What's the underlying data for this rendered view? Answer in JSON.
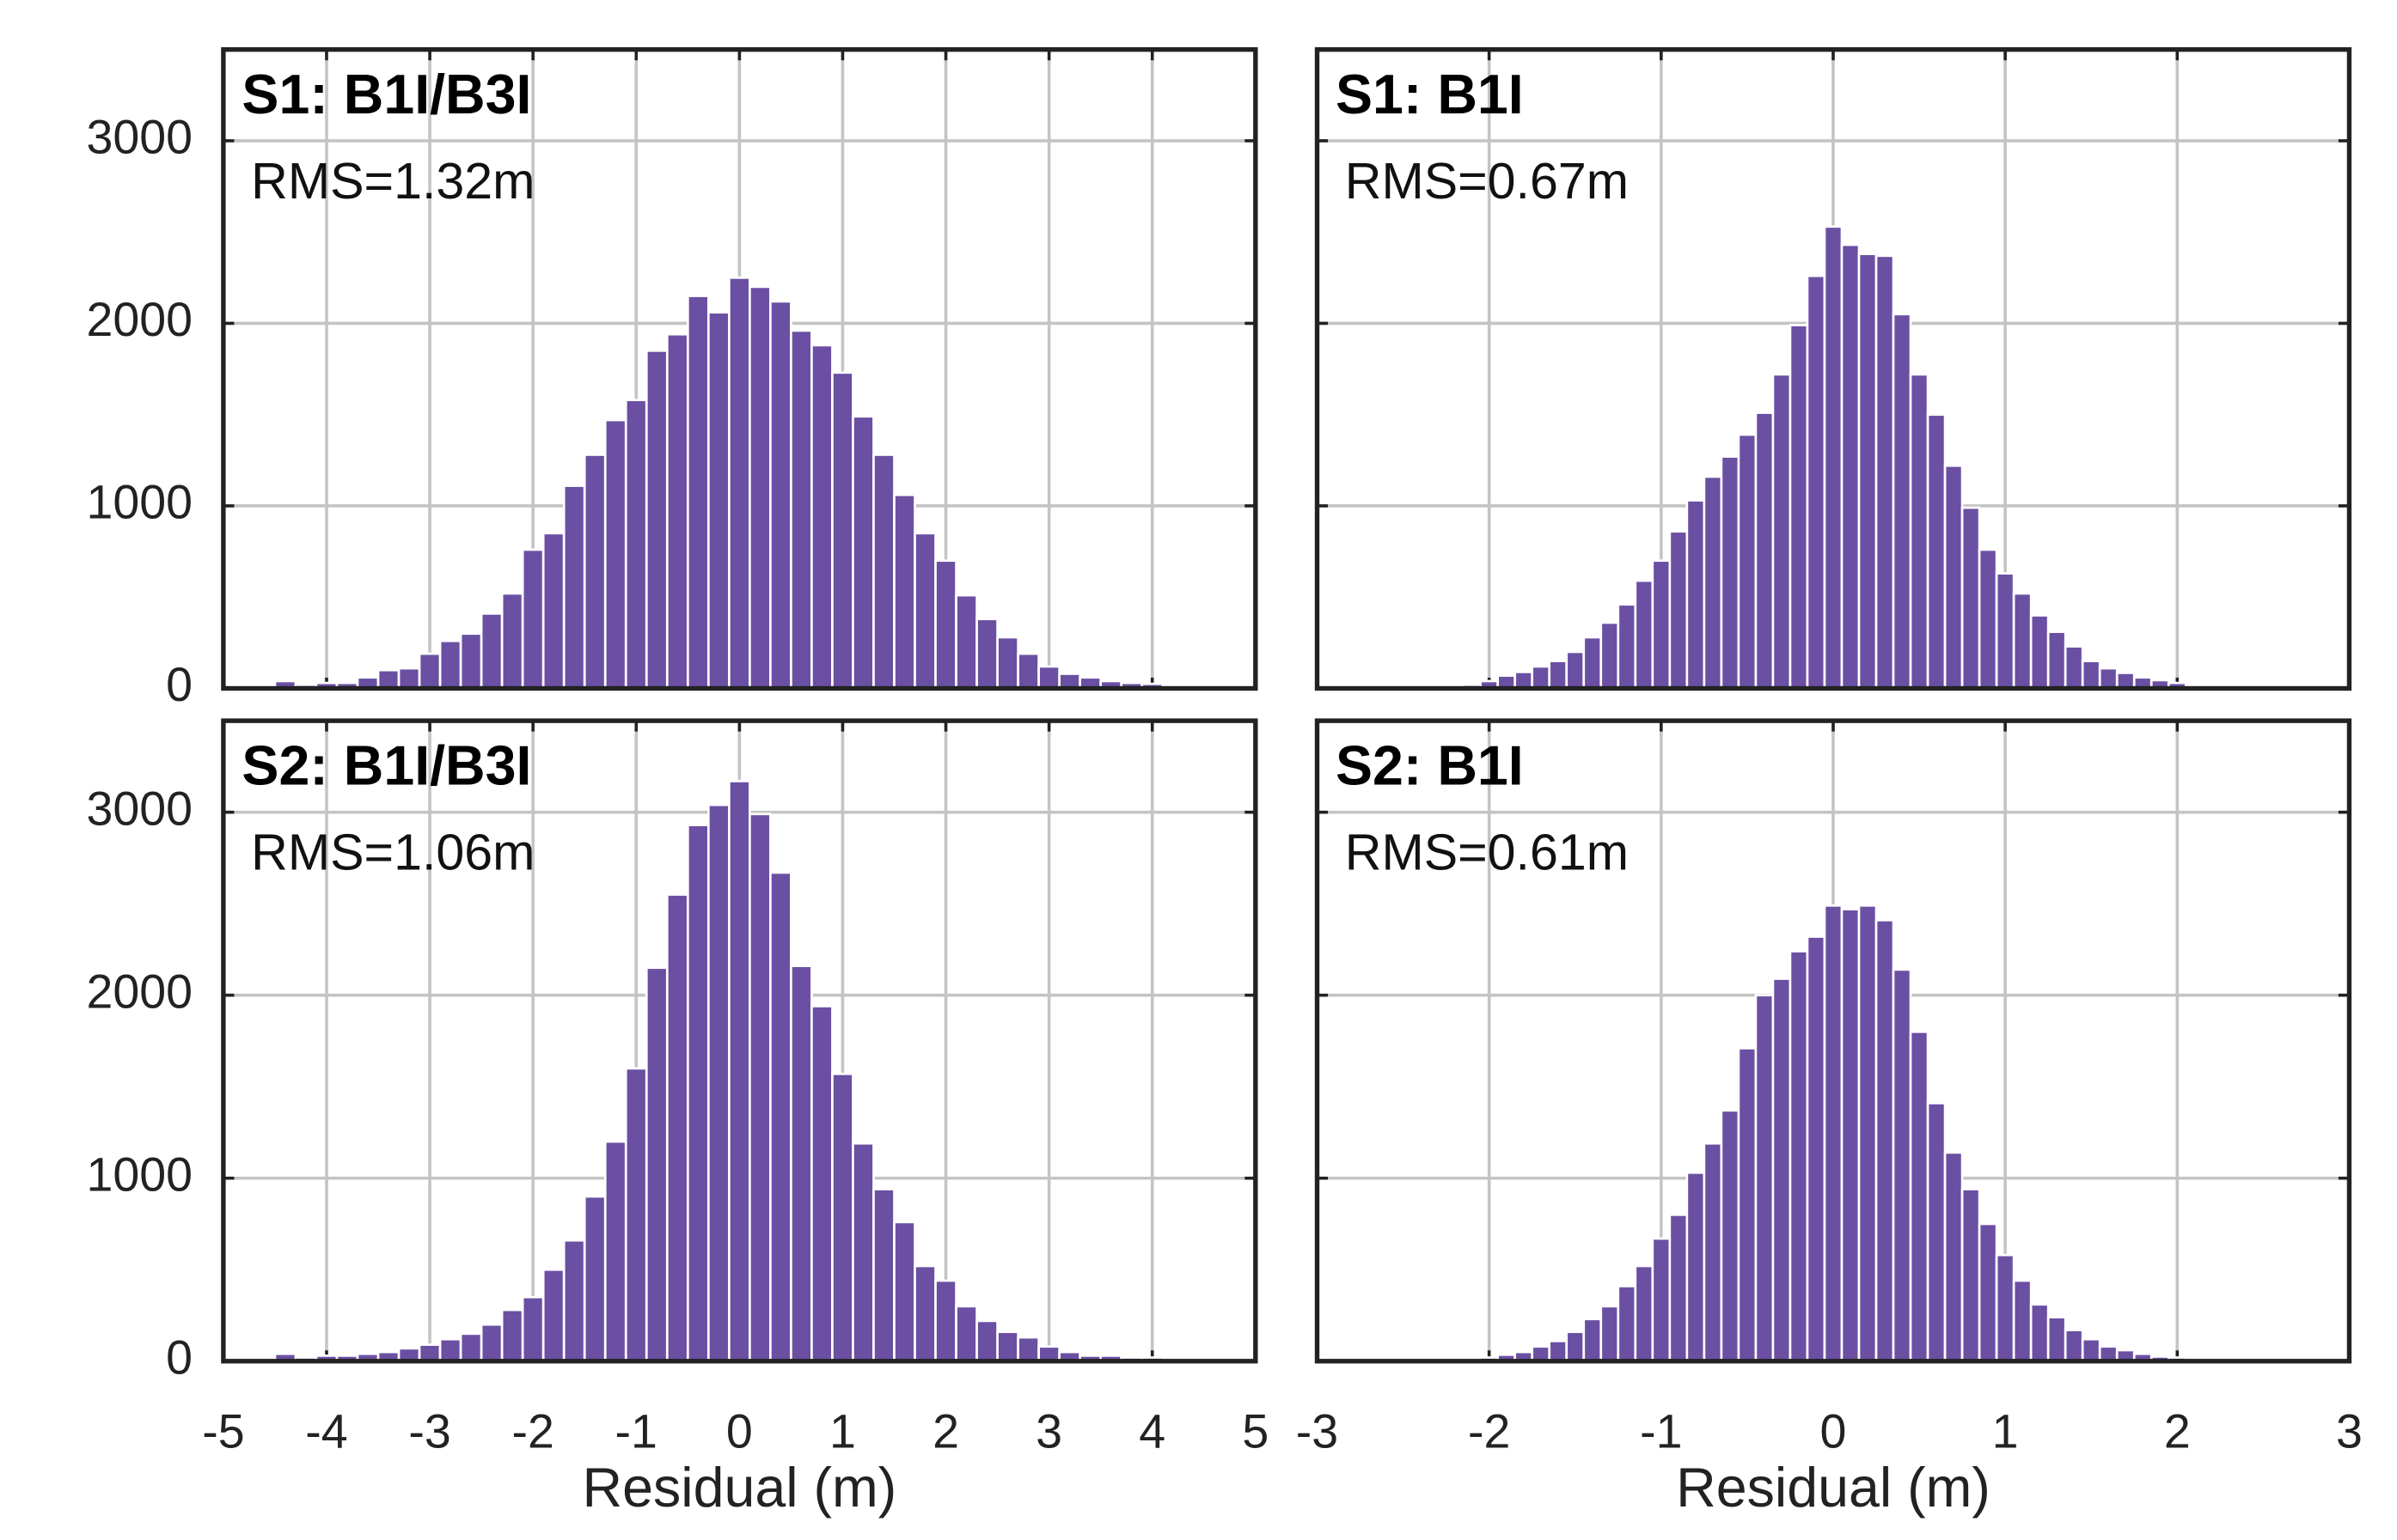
{
  "chart_data": [
    {
      "type": "histogram",
      "title": "S1: B1I/B3I",
      "annotation": "RMS=1.32m",
      "color": "#6b4fa3",
      "bins": [
        -4.5,
        -4.3,
        -4.1,
        -3.9,
        -3.7,
        -3.5,
        -3.3,
        -3.1,
        -2.9,
        -2.7,
        -2.5,
        -2.3,
        -2.1,
        -1.9,
        -1.7,
        -1.5,
        -1.3,
        -1.1,
        -0.9,
        -0.7,
        -0.5,
        -0.3,
        -0.1,
        0.1,
        0.3,
        0.5,
        0.7,
        0.9,
        1.1,
        1.3,
        1.5,
        1.7,
        1.9,
        2.1,
        2.3,
        2.5,
        2.7,
        2.9,
        3.1,
        3.3,
        3.5,
        3.7,
        3.9,
        4.1,
        4.3,
        4.5
      ],
      "counts": [
        40,
        20,
        30,
        30,
        60,
        100,
        110,
        190,
        260,
        300,
        410,
        520,
        760,
        850,
        1110,
        1280,
        1470,
        1580,
        1850,
        1940,
        2150,
        2060,
        2250,
        2200,
        2120,
        1960,
        1880,
        1730,
        1490,
        1280,
        1060,
        850,
        700,
        510,
        380,
        280,
        190,
        120,
        80,
        60,
        40,
        30,
        25,
        15,
        10
      ],
      "xlim": [
        -5,
        5
      ],
      "xticks": [
        -5,
        -4,
        -3,
        -2,
        -1,
        0,
        1,
        2,
        3,
        4,
        5
      ],
      "ylim": [
        0,
        3500
      ],
      "yticks": [
        0,
        1000,
        2000,
        3000
      ],
      "grid": true
    },
    {
      "type": "histogram",
      "title": "S1: B1I",
      "annotation": "RMS=0.67m",
      "color": "#6b4fa3",
      "bins": [
        -2.25,
        -2.15,
        -2.05,
        -1.95,
        -1.85,
        -1.75,
        -1.65,
        -1.55,
        -1.45,
        -1.35,
        -1.25,
        -1.15,
        -1.05,
        -0.95,
        -0.85,
        -0.75,
        -0.65,
        -0.55,
        -0.45,
        -0.35,
        -0.25,
        -0.15,
        -0.05,
        0.05,
        0.15,
        0.25,
        0.35,
        0.45,
        0.55,
        0.65,
        0.75,
        0.85,
        0.95,
        1.05,
        1.15,
        1.25,
        1.35,
        1.45,
        1.55,
        1.65,
        1.75,
        1.85,
        1.95,
        2.05,
        2.15,
        2.25
      ],
      "counts": [
        10,
        20,
        40,
        70,
        90,
        120,
        150,
        200,
        280,
        360,
        460,
        590,
        700,
        860,
        1030,
        1160,
        1270,
        1390,
        1510,
        1720,
        1990,
        2260,
        2530,
        2430,
        2380,
        2370,
        2050,
        1720,
        1500,
        1220,
        990,
        760,
        630,
        520,
        400,
        310,
        230,
        150,
        110,
        85,
        60,
        45,
        30,
        15,
        10
      ],
      "xlim": [
        -3,
        3
      ],
      "xticks": [
        -3,
        -2,
        -1,
        0,
        1,
        2,
        3
      ],
      "ylim": [
        0,
        3500
      ],
      "yticks": [
        0,
        1000,
        2000,
        3000
      ],
      "grid": true
    },
    {
      "type": "histogram",
      "title": "S2: B1I/B3I",
      "annotation": "RMS=1.06m",
      "color": "#6b4fa3",
      "xlabel": "Residual (m)",
      "bins": [
        -4.5,
        -4.3,
        -4.1,
        -3.9,
        -3.7,
        -3.5,
        -3.3,
        -3.1,
        -2.9,
        -2.7,
        -2.5,
        -2.3,
        -2.1,
        -1.9,
        -1.7,
        -1.5,
        -1.3,
        -1.1,
        -0.9,
        -0.7,
        -0.5,
        -0.3,
        -0.1,
        0.1,
        0.3,
        0.5,
        0.7,
        0.9,
        1.1,
        1.3,
        1.5,
        1.7,
        1.9,
        2.1,
        2.3,
        2.5,
        2.7,
        2.9,
        3.1,
        3.3,
        3.5,
        3.7,
        3.9,
        4.1,
        4.3,
        4.5
      ],
      "counts": [
        40,
        20,
        30,
        30,
        40,
        50,
        70,
        90,
        120,
        150,
        200,
        280,
        350,
        500,
        660,
        900,
        1200,
        1600,
        2150,
        2550,
        2930,
        3040,
        3170,
        2990,
        2670,
        2160,
        1940,
        1570,
        1190,
        940,
        760,
        520,
        440,
        300,
        220,
        160,
        130,
        80,
        50,
        30,
        30,
        20,
        20,
        15,
        10
      ],
      "xlim": [
        -5,
        5
      ],
      "xticks": [
        -5,
        -4,
        -3,
        -2,
        -1,
        0,
        1,
        2,
        3,
        4,
        5
      ],
      "ylim": [
        0,
        3500
      ],
      "yticks": [
        0,
        1000,
        2000,
        3000
      ],
      "grid": true
    },
    {
      "type": "histogram",
      "title": "S2: B1I",
      "annotation": "RMS=0.61m",
      "color": "#6b4fa3",
      "xlabel": "Residual (m)",
      "bins": [
        -2.25,
        -2.15,
        -2.05,
        -1.95,
        -1.85,
        -1.75,
        -1.65,
        -1.55,
        -1.45,
        -1.35,
        -1.25,
        -1.15,
        -1.05,
        -0.95,
        -0.85,
        -0.75,
        -0.65,
        -0.55,
        -0.45,
        -0.35,
        -0.25,
        -0.15,
        -0.05,
        0.05,
        0.15,
        0.25,
        0.35,
        0.45,
        0.55,
        0.65,
        0.75,
        0.85,
        0.95,
        1.05,
        1.15,
        1.25,
        1.35,
        1.45,
        1.55,
        1.65,
        1.75,
        1.85,
        1.95,
        2.05,
        2.15,
        2.25
      ],
      "counts": [
        10,
        10,
        20,
        35,
        50,
        80,
        110,
        160,
        230,
        300,
        410,
        520,
        670,
        800,
        1030,
        1190,
        1370,
        1710,
        2000,
        2090,
        2240,
        2320,
        2490,
        2470,
        2490,
        2410,
        2140,
        1800,
        1410,
        1140,
        940,
        750,
        580,
        440,
        310,
        240,
        170,
        120,
        80,
        60,
        40,
        25,
        20,
        10,
        5
      ],
      "xlim": [
        -3,
        3
      ],
      "xticks": [
        -3,
        -2,
        -1,
        0,
        1,
        2,
        3
      ],
      "ylim": [
        0,
        3500
      ],
      "yticks": [
        0,
        1000,
        2000,
        3000
      ],
      "grid": true
    }
  ]
}
